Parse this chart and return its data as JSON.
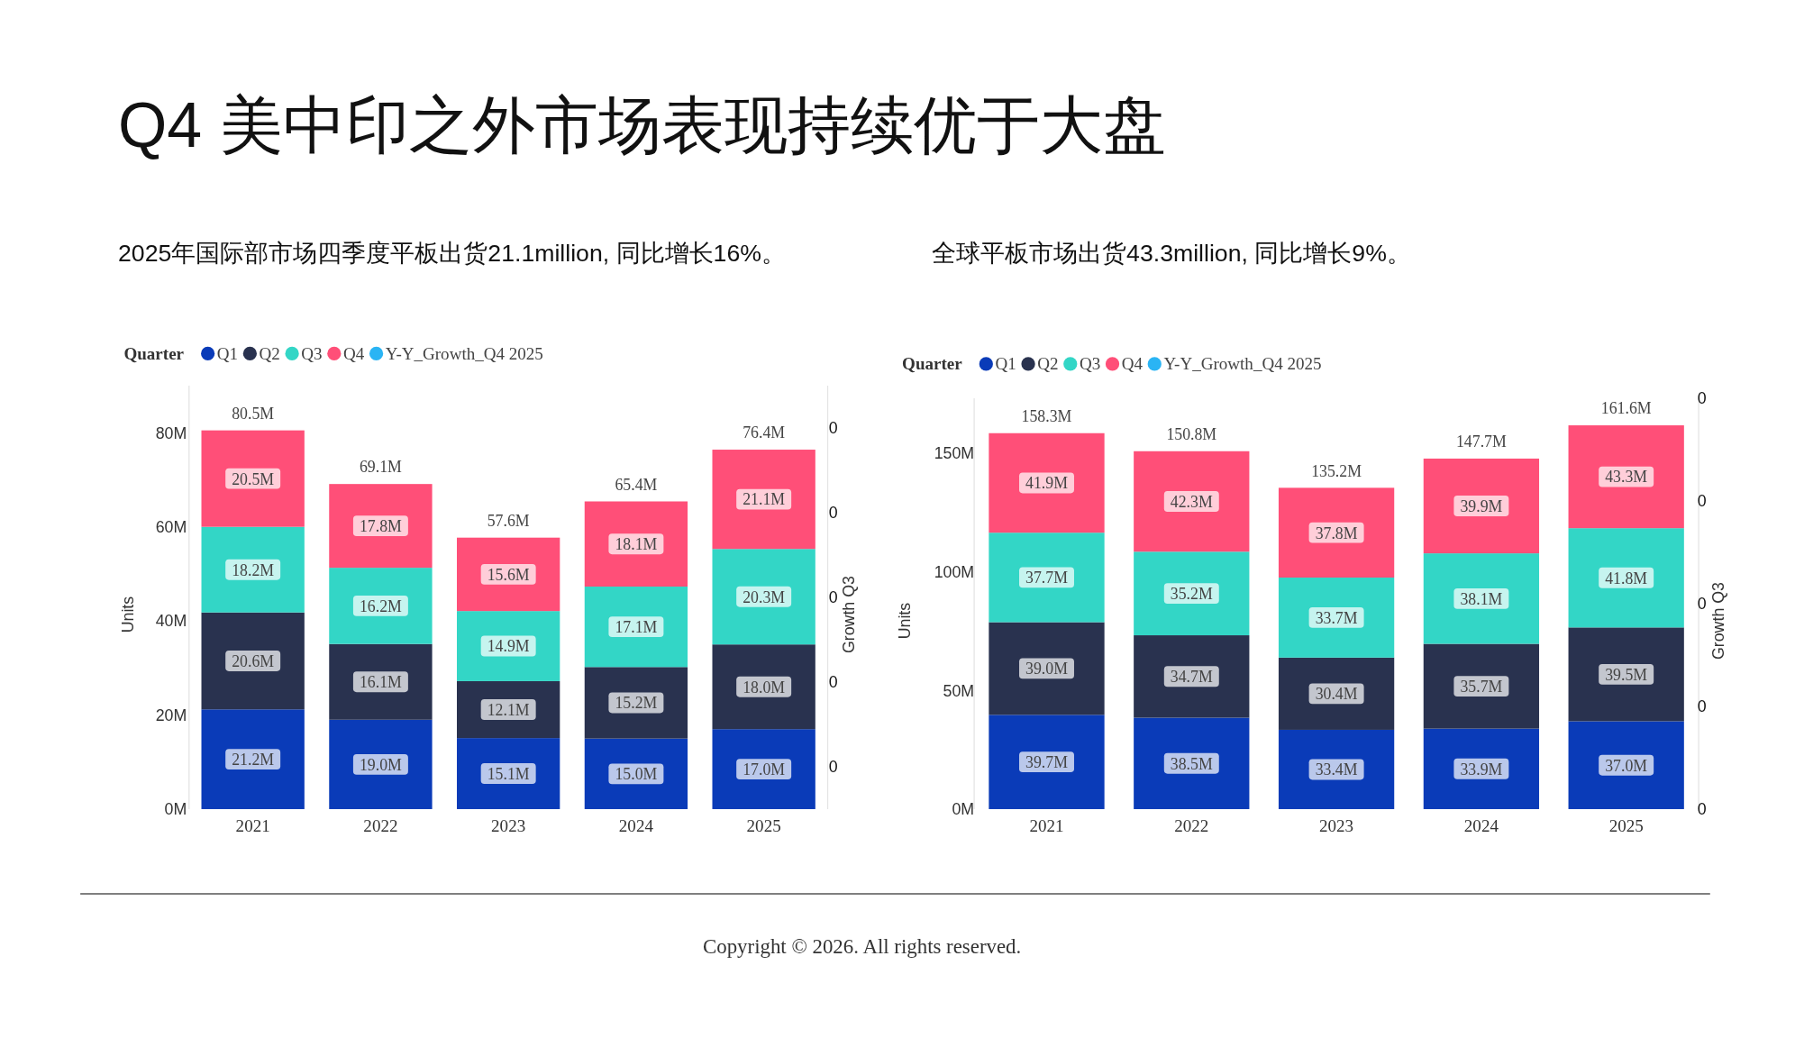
{
  "chart_data": [
    {
      "type": "bar",
      "stacked": true,
      "title": "Q4 美中印之外市场表现持续优于大盘",
      "subtitle": "2025年国际部市场四季度平板出货21.1million, 同比增长16%。",
      "legend": "top left",
      "legend_title": "Quarter",
      "ylabel": "Units",
      "y2label": "Growth Q3",
      "grid": false,
      "categories": [
        "2021",
        "2022",
        "2023",
        "2024",
        "2025"
      ],
      "series": [
        {
          "name": "Q1",
          "color": "#0a3bb8",
          "values": [
            21.2,
            19.0,
            15.1,
            15.0,
            17.0
          ],
          "value_labels": [
            "21.2M",
            "19.0M",
            "15.1M",
            "15.0M",
            "17.0M"
          ]
        },
        {
          "name": "Q2",
          "color": "#29324f",
          "values": [
            20.6,
            16.1,
            12.1,
            15.2,
            18.0
          ],
          "value_labels": [
            "20.6M",
            "16.1M",
            "12.1M",
            "15.2M",
            "18.0M"
          ]
        },
        {
          "name": "Q3",
          "color": "#33d6c6",
          "values": [
            18.2,
            16.2,
            14.9,
            17.1,
            20.3
          ],
          "value_labels": [
            "18.2M",
            "16.2M",
            "14.9M",
            "17.1M",
            "20.3M"
          ]
        },
        {
          "name": "Q4",
          "color": "#ff4f78",
          "values": [
            20.5,
            17.8,
            15.6,
            18.1,
            21.1
          ],
          "value_labels": [
            "20.5M",
            "17.8M",
            "15.6M",
            "18.1M",
            "21.1M"
          ]
        },
        {
          "name": "Y-Y_Growth_Q4 2025",
          "color": "#2ab4f4",
          "values": [
            null,
            null,
            null,
            null,
            null
          ]
        }
      ],
      "totals": [
        "80.5M",
        "69.1M",
        "57.6M",
        "65.4M",
        "76.4M"
      ],
      "ylim": [
        0,
        90
      ],
      "yticks": [
        {
          "value": 0,
          "label": "0M"
        },
        {
          "value": 20,
          "label": "20M"
        },
        {
          "value": 40,
          "label": "40M"
        },
        {
          "value": 60,
          "label": "60M"
        },
        {
          "value": 80,
          "label": "80M"
        }
      ],
      "y2lim": [
        0,
        0.5
      ],
      "y2ticks": [
        {
          "value": 0.05,
          "label": "0"
        },
        {
          "value": 0.15,
          "label": "0"
        },
        {
          "value": 0.25,
          "label": "0"
        },
        {
          "value": 0.35,
          "label": "0"
        },
        {
          "value": 0.45,
          "label": "0"
        }
      ]
    },
    {
      "type": "bar",
      "stacked": true,
      "subtitle": "全球平板市场出货43.3million, 同比增长9%。",
      "legend": "top left",
      "legend_title": "Quarter",
      "ylabel": "Units",
      "y2label": "Growth Q3",
      "grid": false,
      "categories": [
        "2021",
        "2022",
        "2023",
        "2024",
        "2025"
      ],
      "series": [
        {
          "name": "Q1",
          "color": "#0a3bb8",
          "values": [
            39.7,
            38.5,
            33.4,
            33.9,
            37.0
          ],
          "value_labels": [
            "39.7M",
            "38.5M",
            "33.4M",
            "33.9M",
            "37.0M"
          ]
        },
        {
          "name": "Q2",
          "color": "#29324f",
          "values": [
            39.0,
            34.7,
            30.4,
            35.7,
            39.5
          ],
          "value_labels": [
            "39.0M",
            "34.7M",
            "30.4M",
            "35.7M",
            "39.5M"
          ]
        },
        {
          "name": "Q3",
          "color": "#33d6c6",
          "values": [
            37.7,
            35.2,
            33.7,
            38.1,
            41.8
          ],
          "value_labels": [
            "37.7M",
            "35.2M",
            "33.7M",
            "38.1M",
            "41.8M"
          ]
        },
        {
          "name": "Q4",
          "color": "#ff4f78",
          "values": [
            41.9,
            42.3,
            37.8,
            39.9,
            43.3
          ],
          "value_labels": [
            "41.9M",
            "42.3M",
            "37.8M",
            "39.9M",
            "43.3M"
          ]
        },
        {
          "name": "Y-Y_Growth_Q4 2025",
          "color": "#2ab4f4",
          "values": [
            null,
            null,
            null,
            null,
            null
          ]
        }
      ],
      "totals": [
        "158.3M",
        "150.8M",
        "135.2M",
        "147.7M",
        "161.6M"
      ],
      "ylim": [
        0,
        173
      ],
      "yticks": [
        {
          "value": 0,
          "label": "0M"
        },
        {
          "value": 50,
          "label": "50M"
        },
        {
          "value": 100,
          "label": "100M"
        },
        {
          "value": 150,
          "label": "150M"
        }
      ],
      "y2lim": [
        0,
        0.4
      ],
      "y2ticks": [
        {
          "value": 0,
          "label": "0"
        },
        {
          "value": 0.1,
          "label": "0"
        },
        {
          "value": 0.2,
          "label": "0"
        },
        {
          "value": 0.3,
          "label": "0"
        },
        {
          "value": 0.4,
          "label": "0"
        }
      ],
      "annotations": [
        "Copyright © 2026. All rights reserved."
      ]
    }
  ]
}
